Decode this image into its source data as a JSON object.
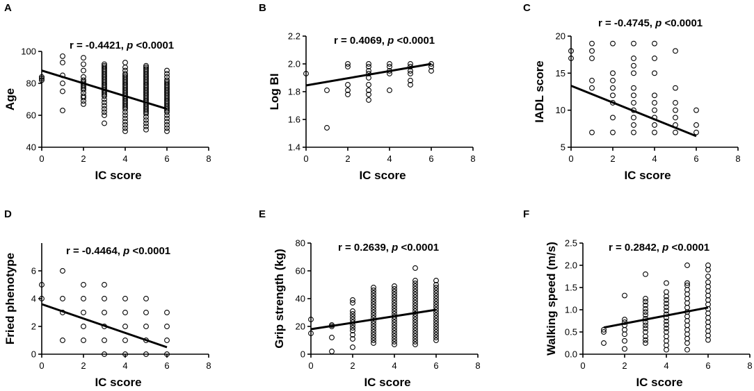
{
  "chart_data": [
    {
      "type": "scatter",
      "panel": "A",
      "xlabel": "IC score",
      "ylabel": "Age",
      "annotation": {
        "r_text": "r = -0.4421, ",
        "p_symbol": "p",
        "p_text": " <0.0001"
      },
      "xlim": [
        0,
        8
      ],
      "xticks": [
        "0",
        "2",
        "4",
        "6",
        "8"
      ],
      "ylim": [
        40,
        100
      ],
      "yticks": [
        "40",
        "60",
        "80",
        "100"
      ],
      "regression": {
        "x": [
          0,
          6
        ],
        "y": [
          88,
          64
        ]
      },
      "points": [
        {
          "x": 0,
          "y": [
            82,
            83,
            84
          ]
        },
        {
          "x": 1,
          "y": [
            63,
            75,
            80,
            85,
            93,
            97
          ]
        },
        {
          "x": 2,
          "y": [
            67,
            69,
            71,
            72,
            74,
            76,
            77,
            78,
            79,
            80,
            81,
            82,
            84,
            88,
            92,
            96
          ]
        },
        {
          "x": 3,
          "y": [
            55,
            60,
            62,
            64,
            66,
            68,
            70,
            72,
            73,
            74,
            75,
            76,
            77,
            78,
            79,
            80,
            81,
            82,
            83,
            84,
            85,
            86,
            87,
            88,
            89,
            90,
            91,
            92
          ]
        },
        {
          "x": 4,
          "y": [
            50,
            52,
            54,
            56,
            58,
            60,
            62,
            64,
            65,
            66,
            67,
            68,
            69,
            70,
            71,
            72,
            73,
            74,
            75,
            76,
            77,
            78,
            79,
            80,
            81,
            82,
            83,
            84,
            85,
            86,
            88,
            90,
            93
          ]
        },
        {
          "x": 5,
          "y": [
            51,
            53,
            55,
            57,
            59,
            61,
            62,
            63,
            64,
            65,
            66,
            67,
            68,
            69,
            70,
            71,
            72,
            73,
            74,
            75,
            76,
            77,
            78,
            79,
            80,
            81,
            82,
            83,
            84,
            85,
            86,
            87,
            88,
            89,
            90,
            91
          ]
        },
        {
          "x": 6,
          "y": [
            50,
            52,
            54,
            56,
            58,
            60,
            62,
            63,
            64,
            65,
            66,
            67,
            68,
            69,
            70,
            71,
            72,
            73,
            74,
            75,
            76,
            77,
            78,
            79,
            80,
            81,
            82,
            84,
            86,
            88
          ]
        }
      ]
    },
    {
      "type": "scatter",
      "panel": "B",
      "xlabel": "IC score",
      "ylabel": "Log BI",
      "annotation": {
        "r_text": "r = 0.4069, ",
        "p_symbol": "p",
        "p_text": " <0.0001"
      },
      "xlim": [
        0,
        8
      ],
      "xticks": [
        "0",
        "2",
        "4",
        "6",
        "8"
      ],
      "ylim": [
        1.4,
        2.2
      ],
      "yticks": [
        "1.4",
        "1.6",
        "1.8",
        "2.0",
        "2.2"
      ],
      "regression": {
        "x": [
          0,
          6
        ],
        "y": [
          1.845,
          2.0
        ]
      },
      "points": [
        {
          "x": 0,
          "y": [
            1.93
          ]
        },
        {
          "x": 1,
          "y": [
            1.54,
            1.81
          ]
        },
        {
          "x": 2,
          "y": [
            1.78,
            1.81,
            1.85,
            1.98,
            2.0
          ]
        },
        {
          "x": 3,
          "y": [
            1.74,
            1.78,
            1.81,
            1.85,
            1.9,
            1.93,
            1.95,
            1.98,
            2.0
          ]
        },
        {
          "x": 4,
          "y": [
            1.81,
            1.93,
            1.95,
            1.98,
            2.0
          ]
        },
        {
          "x": 5,
          "y": [
            1.85,
            1.88,
            1.93,
            1.95,
            1.98,
            2.0
          ]
        },
        {
          "x": 6,
          "y": [
            1.95,
            1.98,
            2.0
          ]
        }
      ]
    },
    {
      "type": "scatter",
      "panel": "C",
      "xlabel": "IC score",
      "ylabel": "IADL score",
      "annotation": {
        "r_text": "r = -0.4745, ",
        "p_symbol": "p",
        "p_text": " <0.0001"
      },
      "xlim": [
        0,
        8
      ],
      "xticks": [
        "0",
        "2",
        "4",
        "6",
        "8"
      ],
      "ylim": [
        5,
        20
      ],
      "yticks": [
        "5",
        "10",
        "15",
        "20"
      ],
      "regression": {
        "x": [
          0,
          6
        ],
        "y": [
          13.3,
          6.5
        ]
      },
      "points": [
        {
          "x": 0,
          "y": [
            17,
            18
          ]
        },
        {
          "x": 1,
          "y": [
            7,
            13,
            14,
            17,
            18,
            19
          ]
        },
        {
          "x": 2,
          "y": [
            7,
            9,
            11,
            12,
            13,
            14,
            15,
            19
          ]
        },
        {
          "x": 3,
          "y": [
            7,
            8,
            9,
            10,
            11,
            12,
            13,
            15,
            16,
            17,
            19
          ]
        },
        {
          "x": 4,
          "y": [
            7,
            8,
            9,
            10,
            11,
            12,
            15,
            17,
            19
          ]
        },
        {
          "x": 5,
          "y": [
            7,
            8,
            9,
            10,
            11,
            13,
            18
          ]
        },
        {
          "x": 6,
          "y": [
            7,
            8,
            10
          ]
        }
      ]
    },
    {
      "type": "scatter",
      "panel": "D",
      "xlabel": "IC score",
      "ylabel": "Fried phenotype",
      "annotation": {
        "r_text": "r = -0.4464, ",
        "p_symbol": "p",
        "p_text": " <0.0001"
      },
      "xlim": [
        0,
        8
      ],
      "xticks": [
        "0",
        "2",
        "4",
        "6",
        "8"
      ],
      "ylim": [
        0,
        8
      ],
      "yticks": [
        "0",
        "2",
        "4",
        "6"
      ],
      "regression": {
        "x": [
          0,
          6
        ],
        "y": [
          3.6,
          0.5
        ]
      },
      "points": [
        {
          "x": 0,
          "y": [
            4,
            5
          ]
        },
        {
          "x": 1,
          "y": [
            1,
            3,
            4,
            6
          ]
        },
        {
          "x": 2,
          "y": [
            1,
            2,
            3,
            4,
            5
          ]
        },
        {
          "x": 3,
          "y": [
            0,
            1,
            2,
            3,
            4,
            5
          ]
        },
        {
          "x": 4,
          "y": [
            0,
            1,
            2,
            3,
            4
          ]
        },
        {
          "x": 5,
          "y": [
            0,
            1,
            2,
            3,
            4
          ]
        },
        {
          "x": 6,
          "y": [
            0,
            1,
            2,
            3
          ]
        }
      ]
    },
    {
      "type": "scatter",
      "panel": "E",
      "xlabel": "IC score",
      "ylabel": "Grip strength (kg)",
      "annotation": {
        "r_text": "r = 0.2639, ",
        "p_symbol": "p",
        "p_text": " <0.0001"
      },
      "xlim": [
        0,
        8
      ],
      "xticks": [
        "0",
        "2",
        "4",
        "6",
        "8"
      ],
      "ylim": [
        0,
        80
      ],
      "yticks": [
        "0",
        "20",
        "40",
        "60",
        "80"
      ],
      "regression": {
        "x": [
          0,
          6
        ],
        "y": [
          18,
          32
        ]
      },
      "points": [
        {
          "x": 0,
          "y": [
            15,
            25
          ]
        },
        {
          "x": 1,
          "y": [
            2,
            12,
            20,
            21
          ]
        },
        {
          "x": 2,
          "y": [
            5,
            11,
            14,
            17,
            19,
            21,
            23,
            25,
            27,
            29,
            31,
            37,
            39
          ]
        },
        {
          "x": 3,
          "y": [
            8,
            10,
            12,
            14,
            16,
            18,
            20,
            22,
            24,
            26,
            28,
            30,
            32,
            34,
            36,
            38,
            40,
            42,
            44,
            46,
            48
          ]
        },
        {
          "x": 4,
          "y": [
            7,
            9,
            11,
            13,
            15,
            17,
            19,
            21,
            23,
            25,
            27,
            29,
            31,
            33,
            35,
            37,
            39,
            41,
            43,
            45,
            47,
            49
          ]
        },
        {
          "x": 5,
          "y": [
            7,
            9,
            11,
            13,
            15,
            17,
            19,
            21,
            23,
            25,
            27,
            29,
            31,
            33,
            35,
            37,
            39,
            41,
            43,
            45,
            47,
            49,
            51,
            53,
            62
          ]
        },
        {
          "x": 6,
          "y": [
            10,
            12,
            14,
            16,
            18,
            20,
            22,
            24,
            26,
            28,
            30,
            32,
            34,
            36,
            38,
            40,
            42,
            44,
            46,
            48,
            50,
            53
          ]
        }
      ]
    },
    {
      "type": "scatter",
      "panel": "F",
      "xlabel": "IC score",
      "ylabel": "Walking speed (m/s)",
      "annotation": {
        "r_text": "r = 0.2842, ",
        "p_symbol": "p",
        "p_text": " <0.0001"
      },
      "xlim": [
        0,
        8
      ],
      "xticks": [
        "0",
        "2",
        "4",
        "6",
        "8"
      ],
      "ylim": [
        0,
        2.5
      ],
      "yticks": [
        "0.0",
        "0.5",
        "1.0",
        "1.5",
        "2.0",
        "2.5"
      ],
      "regression": {
        "x": [
          1,
          6
        ],
        "y": [
          0.6,
          1.05
        ]
      },
      "points": [
        {
          "x": 1,
          "y": [
            0.25,
            0.5,
            0.55
          ]
        },
        {
          "x": 2,
          "y": [
            0.12,
            0.3,
            0.45,
            0.55,
            0.65,
            0.72,
            0.78,
            1.32
          ]
        },
        {
          "x": 3,
          "y": [
            0.25,
            0.32,
            0.4,
            0.5,
            0.58,
            0.65,
            0.72,
            0.8,
            0.88,
            0.95,
            1.02,
            1.1,
            1.18,
            1.25,
            1.8
          ]
        },
        {
          "x": 4,
          "y": [
            0.1,
            0.2,
            0.3,
            0.4,
            0.5,
            0.58,
            0.66,
            0.74,
            0.82,
            0.9,
            0.98,
            1.06,
            1.14,
            1.22,
            1.3,
            1.4,
            1.6
          ]
        },
        {
          "x": 5,
          "y": [
            0.1,
            0.25,
            0.35,
            0.45,
            0.55,
            0.65,
            0.75,
            0.85,
            0.95,
            1.05,
            1.15,
            1.25,
            1.35,
            1.45,
            1.55,
            1.6,
            2.0
          ]
        },
        {
          "x": 6,
          "y": [
            0.32,
            0.42,
            0.52,
            0.62,
            0.72,
            0.82,
            0.92,
            1.02,
            1.12,
            1.22,
            1.32,
            1.42,
            1.52,
            1.62,
            1.75,
            1.9,
            2.0
          ]
        }
      ]
    }
  ]
}
